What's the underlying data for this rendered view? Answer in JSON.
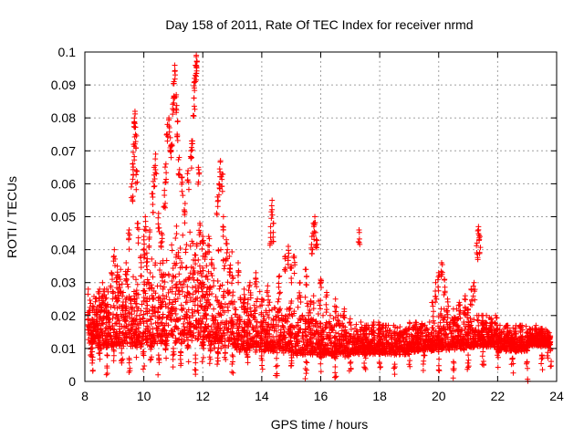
{
  "chart_data": {
    "type": "scatter",
    "title": "Day 158 of 2011, Rate Of TEC Index for receiver nrmd",
    "xlabel": "GPS time / hours",
    "ylabel": "ROTI / TECUs",
    "xlim": [
      8,
      24
    ],
    "ylim": [
      0,
      0.1
    ],
    "x_ticks": [
      "8",
      "10",
      "12",
      "14",
      "16",
      "18",
      "20",
      "22",
      "24"
    ],
    "y_ticks": [
      "0",
      "0.01",
      "0.02",
      "0.03",
      "0.04",
      "0.05",
      "0.06",
      "0.07",
      "0.08",
      "0.09",
      "0.1"
    ],
    "grid": true,
    "marker": "+",
    "color": "#ff0000",
    "series": [
      {
        "points": [
          [
            8.2,
            0.012
          ],
          [
            8.3,
            0.018
          ],
          [
            8.4,
            0.022
          ],
          [
            8.5,
            0.028
          ],
          [
            8.6,
            0.03
          ],
          [
            8.7,
            0.025
          ],
          [
            8.8,
            0.021
          ],
          [
            8.9,
            0.033
          ],
          [
            9.0,
            0.04
          ],
          [
            9.1,
            0.035
          ],
          [
            9.2,
            0.031
          ],
          [
            9.3,
            0.027
          ],
          [
            9.4,
            0.036
          ],
          [
            9.5,
            0.046
          ],
          [
            9.6,
            0.06
          ],
          [
            9.62,
            0.066
          ],
          [
            9.65,
            0.072
          ],
          [
            9.68,
            0.08
          ],
          [
            9.7,
            0.082
          ],
          [
            9.72,
            0.075
          ],
          [
            9.75,
            0.064
          ],
          [
            9.8,
            0.048
          ],
          [
            9.9,
            0.038
          ],
          [
            10.0,
            0.044
          ],
          [
            10.05,
            0.05
          ],
          [
            10.1,
            0.039
          ],
          [
            10.2,
            0.046
          ],
          [
            10.3,
            0.057
          ],
          [
            10.35,
            0.065
          ],
          [
            10.4,
            0.069
          ],
          [
            10.5,
            0.051
          ],
          [
            10.6,
            0.045
          ],
          [
            10.7,
            0.058
          ],
          [
            10.75,
            0.066
          ],
          [
            10.8,
            0.078
          ],
          [
            10.85,
            0.08
          ],
          [
            10.9,
            0.074
          ],
          [
            10.95,
            0.072
          ],
          [
            11.0,
            0.086
          ],
          [
            11.02,
            0.091
          ],
          [
            11.05,
            0.096
          ],
          [
            11.1,
            0.087
          ],
          [
            11.15,
            0.079
          ],
          [
            11.2,
            0.068
          ],
          [
            11.3,
            0.062
          ],
          [
            11.4,
            0.054
          ],
          [
            11.5,
            0.064
          ],
          [
            11.6,
            0.07
          ],
          [
            11.65,
            0.073
          ],
          [
            11.7,
            0.086
          ],
          [
            11.72,
            0.092
          ],
          [
            11.75,
            0.096
          ],
          [
            11.78,
            0.099
          ],
          [
            11.8,
            0.097
          ],
          [
            11.85,
            0.065
          ],
          [
            11.9,
            0.048
          ],
          [
            12.0,
            0.044
          ],
          [
            12.1,
            0.039
          ],
          [
            12.2,
            0.044
          ],
          [
            12.3,
            0.037
          ],
          [
            12.5,
            0.056
          ],
          [
            12.55,
            0.06
          ],
          [
            12.6,
            0.067
          ],
          [
            12.65,
            0.063
          ],
          [
            12.7,
            0.05
          ],
          [
            12.8,
            0.043
          ],
          [
            12.9,
            0.038
          ],
          [
            13.0,
            0.032
          ],
          [
            13.2,
            0.036
          ],
          [
            13.4,
            0.028
          ],
          [
            13.6,
            0.03
          ],
          [
            13.8,
            0.033
          ],
          [
            14.0,
            0.025
          ],
          [
            14.2,
            0.029
          ],
          [
            14.3,
            0.047
          ],
          [
            14.35,
            0.055
          ],
          [
            14.4,
            0.048
          ],
          [
            14.6,
            0.032
          ],
          [
            14.8,
            0.038
          ],
          [
            14.9,
            0.041
          ],
          [
            15.0,
            0.035
          ],
          [
            15.1,
            0.038
          ],
          [
            15.3,
            0.03
          ],
          [
            15.5,
            0.034
          ],
          [
            15.7,
            0.044
          ],
          [
            15.75,
            0.048
          ],
          [
            15.8,
            0.05
          ],
          [
            15.85,
            0.043
          ],
          [
            16.0,
            0.031
          ],
          [
            16.2,
            0.027
          ],
          [
            16.5,
            0.025
          ],
          [
            16.8,
            0.022
          ],
          [
            17.0,
            0.019
          ],
          [
            17.3,
            0.046
          ],
          [
            17.5,
            0.017
          ],
          [
            17.8,
            0.018
          ],
          [
            18.0,
            0.016
          ],
          [
            18.4,
            0.014
          ],
          [
            18.8,
            0.015
          ],
          [
            19.2,
            0.014
          ],
          [
            19.6,
            0.016
          ],
          [
            19.8,
            0.024
          ],
          [
            19.9,
            0.03
          ],
          [
            20.0,
            0.033
          ],
          [
            20.1,
            0.036
          ],
          [
            20.2,
            0.031
          ],
          [
            20.3,
            0.025
          ],
          [
            20.5,
            0.022
          ],
          [
            20.7,
            0.024
          ],
          [
            20.9,
            0.026
          ],
          [
            21.0,
            0.022
          ],
          [
            21.1,
            0.028
          ],
          [
            21.2,
            0.03
          ],
          [
            21.3,
            0.042
          ],
          [
            21.35,
            0.047
          ],
          [
            21.4,
            0.044
          ],
          [
            21.5,
            0.02
          ],
          [
            21.8,
            0.018
          ],
          [
            22.0,
            0.016
          ],
          [
            22.3,
            0.014
          ],
          [
            22.6,
            0.016
          ],
          [
            23.0,
            0.015
          ],
          [
            23.3,
            0.017
          ],
          [
            23.5,
            0.016
          ],
          [
            23.7,
            0.012
          ],
          [
            8.25,
            0.009
          ],
          [
            8.5,
            0.011
          ],
          [
            8.75,
            0.008
          ],
          [
            9.0,
            0.012
          ],
          [
            9.25,
            0.01
          ],
          [
            9.5,
            0.007
          ],
          [
            9.75,
            0.013
          ],
          [
            10.0,
            0.009
          ],
          [
            10.25,
            0.011
          ],
          [
            10.5,
            0.008
          ],
          [
            10.75,
            0.012
          ],
          [
            11.0,
            0.01
          ],
          [
            11.25,
            0.009
          ],
          [
            11.5,
            0.011
          ],
          [
            11.75,
            0.008
          ],
          [
            12.0,
            0.012
          ],
          [
            12.25,
            0.01
          ],
          [
            12.5,
            0.009
          ],
          [
            12.75,
            0.011
          ],
          [
            13.0,
            0.008
          ],
          [
            13.5,
            0.01
          ],
          [
            14.0,
            0.009
          ],
          [
            14.5,
            0.007
          ],
          [
            15.0,
            0.008
          ],
          [
            15.5,
            0.006
          ],
          [
            16.0,
            0.008
          ],
          [
            16.5,
            0.007
          ],
          [
            17.0,
            0.009
          ],
          [
            17.5,
            0.008
          ],
          [
            18.0,
            0.009
          ],
          [
            18.5,
            0.008
          ],
          [
            19.0,
            0.01
          ],
          [
            19.5,
            0.008
          ],
          [
            20.0,
            0.009
          ],
          [
            20.5,
            0.006
          ],
          [
            21.0,
            0.008
          ],
          [
            21.5,
            0.009
          ],
          [
            22.0,
            0.01
          ],
          [
            22.5,
            0.007
          ],
          [
            23.0,
            0.006
          ],
          [
            23.5,
            0.008
          ],
          [
            23.8,
            0.01
          ]
        ],
        "dense_bands": [
          {
            "x": [
              8.1,
              9.0
            ],
            "y": [
              0.006,
              0.028
            ]
          },
          {
            "x": [
              9.0,
              10.0
            ],
            "y": [
              0.006,
              0.034
            ]
          },
          {
            "x": [
              10.0,
              11.0
            ],
            "y": [
              0.005,
              0.044
            ]
          },
          {
            "x": [
              11.0,
              12.0
            ],
            "y": [
              0.005,
              0.05
            ]
          },
          {
            "x": [
              12.0,
              13.0
            ],
            "y": [
              0.005,
              0.04
            ]
          },
          {
            "x": [
              13.0,
              14.0
            ],
            "y": [
              0.005,
              0.028
            ]
          },
          {
            "x": [
              14.0,
              15.0
            ],
            "y": [
              0.005,
              0.025
            ]
          },
          {
            "x": [
              15.0,
              16.0
            ],
            "y": [
              0.004,
              0.026
            ]
          },
          {
            "x": [
              16.0,
              17.0
            ],
            "y": [
              0.004,
              0.02
            ]
          },
          {
            "x": [
              17.0,
              18.0
            ],
            "y": [
              0.005,
              0.018
            ]
          },
          {
            "x": [
              18.0,
              19.0
            ],
            "y": [
              0.005,
              0.017
            ]
          },
          {
            "x": [
              19.0,
              20.0
            ],
            "y": [
              0.006,
              0.018
            ]
          },
          {
            "x": [
              20.0,
              21.0
            ],
            "y": [
              0.006,
              0.022
            ]
          },
          {
            "x": [
              21.0,
              22.0
            ],
            "y": [
              0.007,
              0.02
            ]
          },
          {
            "x": [
              22.0,
              23.0
            ],
            "y": [
              0.006,
              0.017
            ]
          },
          {
            "x": [
              23.0,
              23.8
            ],
            "y": [
              0.008,
              0.016
            ]
          }
        ]
      }
    ]
  }
}
